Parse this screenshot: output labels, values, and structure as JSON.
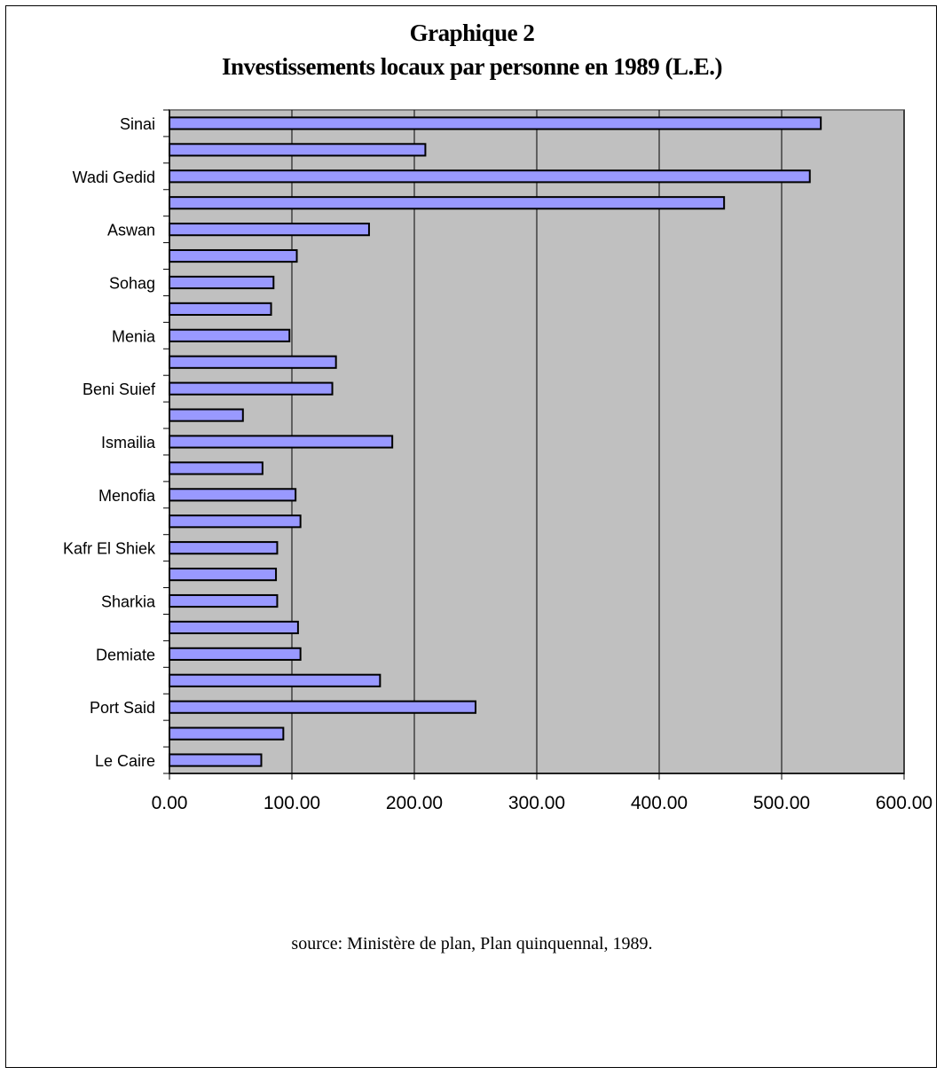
{
  "chart_data": {
    "type": "bar",
    "orientation": "horizontal",
    "title": "Graphique 2",
    "subtitle": "Investissements locaux par personne en  1989  (L.E.)",
    "source": "source: Ministère de plan, Plan quinquennal, 1989.",
    "categories": [
      "Sinai",
      "",
      "Wadi Gedid",
      "",
      "Aswan",
      "",
      "Sohag",
      "",
      "Menia",
      "",
      "Beni Suief",
      "",
      "Ismailia",
      "",
      "Menofia",
      "",
      "Kafr El Shiek",
      "",
      "Sharkia",
      "",
      "Demiate",
      "",
      "Port Said",
      "",
      "Le Caire"
    ],
    "values": [
      532,
      209,
      523,
      453,
      163,
      104,
      85,
      83,
      98,
      136,
      133,
      60,
      182,
      76,
      103,
      107,
      88,
      87,
      88,
      105,
      107,
      172,
      250,
      93,
      75
    ],
    "x_ticks": [
      "0.00",
      "100.00",
      "200.00",
      "300.00",
      "400.00",
      "500.00",
      "600.00"
    ],
    "xlim": [
      0,
      600
    ],
    "grid": "vertical",
    "colors": {
      "plot_background": "#c0c0c0",
      "bar_fill": "#9999ff",
      "bar_stroke": "#000000",
      "gridline": "#000000"
    }
  }
}
